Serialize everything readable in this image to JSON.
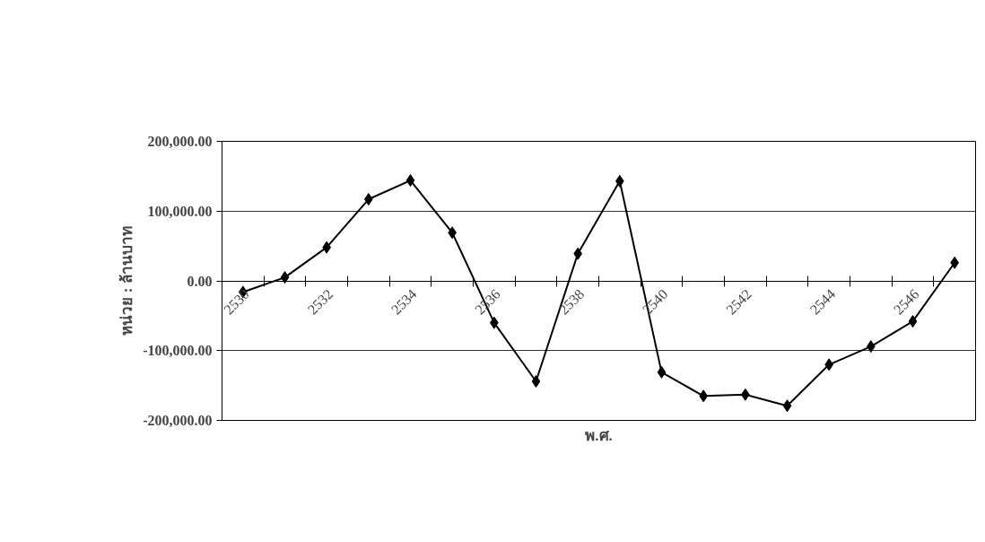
{
  "chart_data": {
    "type": "line",
    "xlabel": "พ.ศ.",
    "ylabel": "หน่วย : ล้านบาท",
    "categories": [
      "2530",
      null,
      "2532",
      null,
      "2534",
      null,
      "2536",
      null,
      "2538",
      null,
      "2540",
      null,
      "2542",
      null,
      "2544",
      null,
      "2546",
      null
    ],
    "series": [
      {
        "color": "#000000",
        "values": [
          -16000,
          5000,
          48000,
          117000,
          144000,
          69000,
          -60000,
          -144000,
          39000,
          143000,
          -131000,
          -165000,
          -163000,
          -179000,
          -120000,
          -94000,
          -58000,
          26000
        ]
      }
    ],
    "ylim": [
      -200000,
      200000
    ],
    "yticks": [
      {
        "value": -200000,
        "label": "-200,000.00"
      },
      {
        "value": -100000,
        "label": "-100,000.00"
      },
      {
        "value": 0,
        "label": "0.00"
      },
      {
        "value": 100000,
        "label": "100,000.00"
      },
      {
        "value": 200000,
        "label": "200,000.00"
      }
    ],
    "grid": "y",
    "marker": "diamond",
    "line_style": "solid"
  }
}
